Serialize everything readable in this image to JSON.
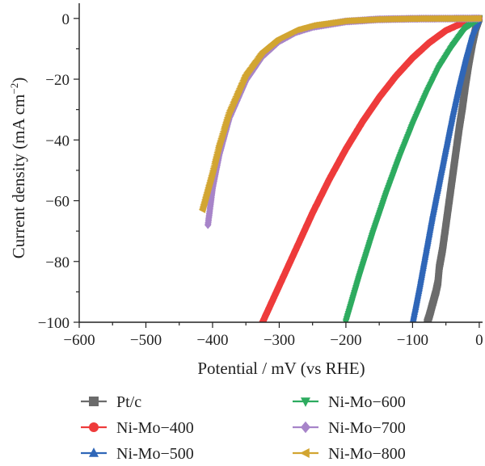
{
  "chart_data": {
    "type": "line",
    "xlabel": "Potential / mV (vs RHE)",
    "ylabel": "Current density (mA cm",
    "ylabel_superscript": "−2",
    "ylabel_close": ")",
    "xlim": [
      -600,
      5
    ],
    "ylim": [
      -100,
      5
    ],
    "x_ticks": [
      -600,
      -500,
      -400,
      -300,
      -200,
      -100,
      0
    ],
    "x_tick_labels": [
      "−600",
      "−500",
      "−400",
      "−300",
      "−200",
      "−100",
      "0"
    ],
    "y_ticks": [
      0,
      -20,
      -40,
      -60,
      -80,
      -100
    ],
    "y_tick_labels": [
      "0",
      "−20",
      "−40",
      "−60",
      "−80",
      "−100"
    ],
    "grid": false,
    "legend_position": "bottom",
    "series": [
      {
        "name": "Pt/c",
        "color": "#6b6b6b",
        "marker": "square",
        "x": [
          0,
          -5,
          -10,
          -15,
          -20,
          -25,
          -30,
          -35,
          -40,
          -45,
          -50,
          -55,
          -60,
          -62,
          -65,
          -70,
          -75,
          -78
        ],
        "y": [
          0,
          -3,
          -8,
          -14,
          -21,
          -29,
          -36,
          -44,
          -52,
          -60,
          -68,
          -76,
          -82,
          -87,
          -90,
          -94,
          -98,
          -100
        ]
      },
      {
        "name": "Ni-Mo−400",
        "color": "#ee3b3b",
        "marker": "circle",
        "x": [
          0,
          -25,
          -50,
          -75,
          -100,
          -125,
          -150,
          -175,
          -200,
          -225,
          -250,
          -275,
          -300,
          -325
        ],
        "y": [
          0,
          -1.5,
          -4,
          -8,
          -13,
          -19,
          -26,
          -34,
          -43,
          -53,
          -64,
          -76,
          -88,
          -100
        ]
      },
      {
        "name": "Ni-Mo−500",
        "color": "#2f66b8",
        "marker": "triangle-up",
        "x": [
          0,
          -10,
          -20,
          -30,
          -40,
          -50,
          -60,
          -70,
          -80,
          -90,
          -100
        ],
        "y": [
          0,
          -5,
          -13,
          -22,
          -32,
          -43,
          -54,
          -65,
          -77,
          -89,
          -100
        ]
      },
      {
        "name": "Ni-Mo−600",
        "color": "#2dab5f",
        "marker": "triangle-down",
        "x": [
          0,
          -20,
          -40,
          -60,
          -80,
          -100,
          -120,
          -140,
          -160,
          -180,
          -200
        ],
        "y": [
          0,
          -3,
          -9,
          -16,
          -25,
          -35,
          -46,
          -58,
          -71,
          -85,
          -100
        ]
      },
      {
        "name": "Ni-Mo−700",
        "color": "#a784c9",
        "marker": "diamond",
        "x": [
          0,
          -100,
          -150,
          -200,
          -250,
          -275,
          -300,
          -325,
          -350,
          -375,
          -390,
          -400,
          -407
        ],
        "y": [
          0,
          -0.1,
          -0.3,
          -1,
          -2.8,
          -4.5,
          -7.5,
          -12.5,
          -20.5,
          -33,
          -45,
          -56,
          -68
        ]
      },
      {
        "name": "Ni-Mo−800",
        "color": "#d2a531",
        "marker": "triangle-left",
        "x": [
          0,
          -100,
          -150,
          -200,
          -250,
          -275,
          -300,
          -325,
          -350,
          -375,
          -390,
          -400,
          -415
        ],
        "y": [
          0,
          -0.1,
          -0.3,
          -0.8,
          -2.3,
          -3.8,
          -6.5,
          -11,
          -18.5,
          -31,
          -42,
          -51,
          -63
        ]
      }
    ]
  }
}
